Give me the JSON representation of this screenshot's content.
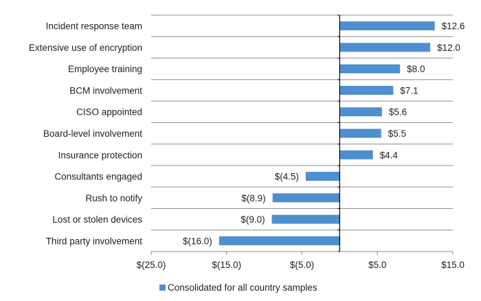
{
  "chart_data": {
    "type": "bar",
    "orientation": "horizontal",
    "title": "",
    "xlabel": "",
    "ylabel": "",
    "categories": [
      "Incident response team",
      "Extensive use of encryption",
      "Employee training",
      "BCM involvement",
      "CISO appointed",
      "Board-level involvement",
      "Insurance protection",
      "Consultants engaged",
      "Rush to notify",
      "Lost or stolen devices",
      "Third party involvement"
    ],
    "series": [
      {
        "name": "Consolidated for all country samples",
        "values": [
          12.6,
          12.0,
          8.0,
          7.1,
          5.6,
          5.5,
          4.4,
          -4.5,
          -8.9,
          -9.0,
          -16.0
        ],
        "color": "#4f8fcf"
      }
    ],
    "data_labels": [
      "$12.6",
      "$12.0",
      "$8.0",
      "$7.1",
      "$5.6",
      "$5.5",
      "$4.4",
      "$(4.5)",
      "$(8.9)",
      "$(9.0)",
      "$(16.0)"
    ],
    "xlim": [
      -25,
      15
    ],
    "xticks": [
      -25,
      -15,
      -5,
      5,
      15
    ],
    "xtick_labels": [
      "$(25.0)",
      "$(15.0)",
      "$(5.0)",
      "$5.0",
      "$15.0"
    ],
    "grid": "horizontal",
    "legend": {
      "position": "bottom-left",
      "entries": [
        "Consolidated for all country samples"
      ]
    }
  }
}
